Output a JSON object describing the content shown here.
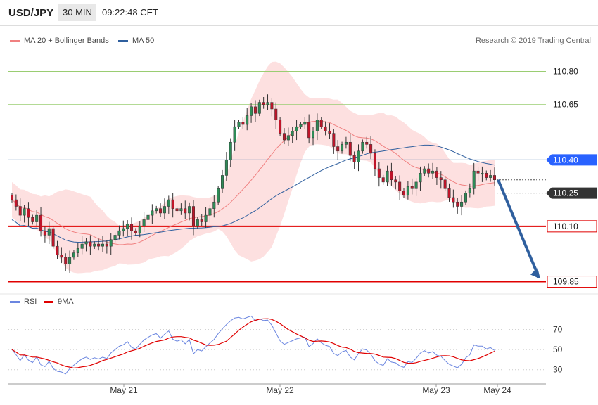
{
  "header": {
    "pair": "USD/JPY",
    "timeframe": "30 MIN",
    "time": "09:22:48 CET"
  },
  "legend": {
    "ma20": "MA 20 + Bollinger Bands",
    "ma50": "MA 50",
    "rsi": "RSI",
    "ma9": "9MA"
  },
  "credit": "Research © 2019 Trading Central",
  "colors": {
    "up": "#2e8b57",
    "down": "#c0152a",
    "ma20": "#f08080",
    "band": "#fde0e0",
    "ma50": "#2f5f9e",
    "green_level": "#9acd72",
    "blue_level": "#2f5f9e",
    "red_level": "#e00000",
    "arrow": "#2f5f9e",
    "rsi": "#6b86e0",
    "rsi_ma": "#e00000"
  },
  "chart_data": {
    "type": "candlestick",
    "x": [
      "May 21",
      "May 22",
      "May 23",
      "May 24"
    ],
    "ylim": [
      109.82,
      110.9
    ],
    "levels": [
      {
        "value": 110.8,
        "label": "110.80",
        "style": "green"
      },
      {
        "value": 110.65,
        "label": "110.65",
        "style": "green"
      },
      {
        "value": 110.4,
        "label": "110.40",
        "style": "blue"
      },
      {
        "value": 110.25,
        "label": "110.25",
        "style": "dark"
      },
      {
        "value": 110.1,
        "label": "110.10",
        "style": "red"
      },
      {
        "value": 109.85,
        "label": "109.85",
        "style": "red"
      }
    ],
    "forecast_target": 109.85,
    "candles_close": [
      110.22,
      110.19,
      110.15,
      110.18,
      110.14,
      110.12,
      110.15,
      110.08,
      110.06,
      110.09,
      110.01,
      109.97,
      109.96,
      109.93,
      109.96,
      109.98,
      110.0,
      110.02,
      110.03,
      110.01,
      110.02,
      110.01,
      110.02,
      110.01,
      110.04,
      110.06,
      110.08,
      110.09,
      110.11,
      110.08,
      110.07,
      110.1,
      110.13,
      110.15,
      110.17,
      110.18,
      110.16,
      110.19,
      110.22,
      110.18,
      110.17,
      110.18,
      110.16,
      110.19,
      110.1,
      110.13,
      110.12,
      110.15,
      110.18,
      110.21,
      110.27,
      110.33,
      110.4,
      110.48,
      110.55,
      110.57,
      110.56,
      110.6,
      110.64,
      110.61,
      110.66,
      110.65,
      110.66,
      110.63,
      110.58,
      110.52,
      110.49,
      110.51,
      110.53,
      110.55,
      110.56,
      110.57,
      110.5,
      110.53,
      110.58,
      110.55,
      110.53,
      110.52,
      110.46,
      110.44,
      110.47,
      110.48,
      110.42,
      110.39,
      110.44,
      110.48,
      110.47,
      110.43,
      110.36,
      110.32,
      110.3,
      110.35,
      110.31,
      110.3,
      110.26,
      110.24,
      110.28,
      110.27,
      110.3,
      110.34,
      110.36,
      110.34,
      110.35,
      110.32,
      110.31,
      110.27,
      110.23,
      110.21,
      110.19,
      110.21,
      110.25,
      110.27,
      110.35,
      110.34,
      110.34,
      110.32,
      110.33,
      110.31
    ],
    "rsi": {
      "ylim": [
        20,
        90
      ],
      "ticks": [
        70,
        50,
        30
      ]
    },
    "annotations": [
      "May 21",
      "May 22",
      "May 23",
      "May 24"
    ]
  }
}
